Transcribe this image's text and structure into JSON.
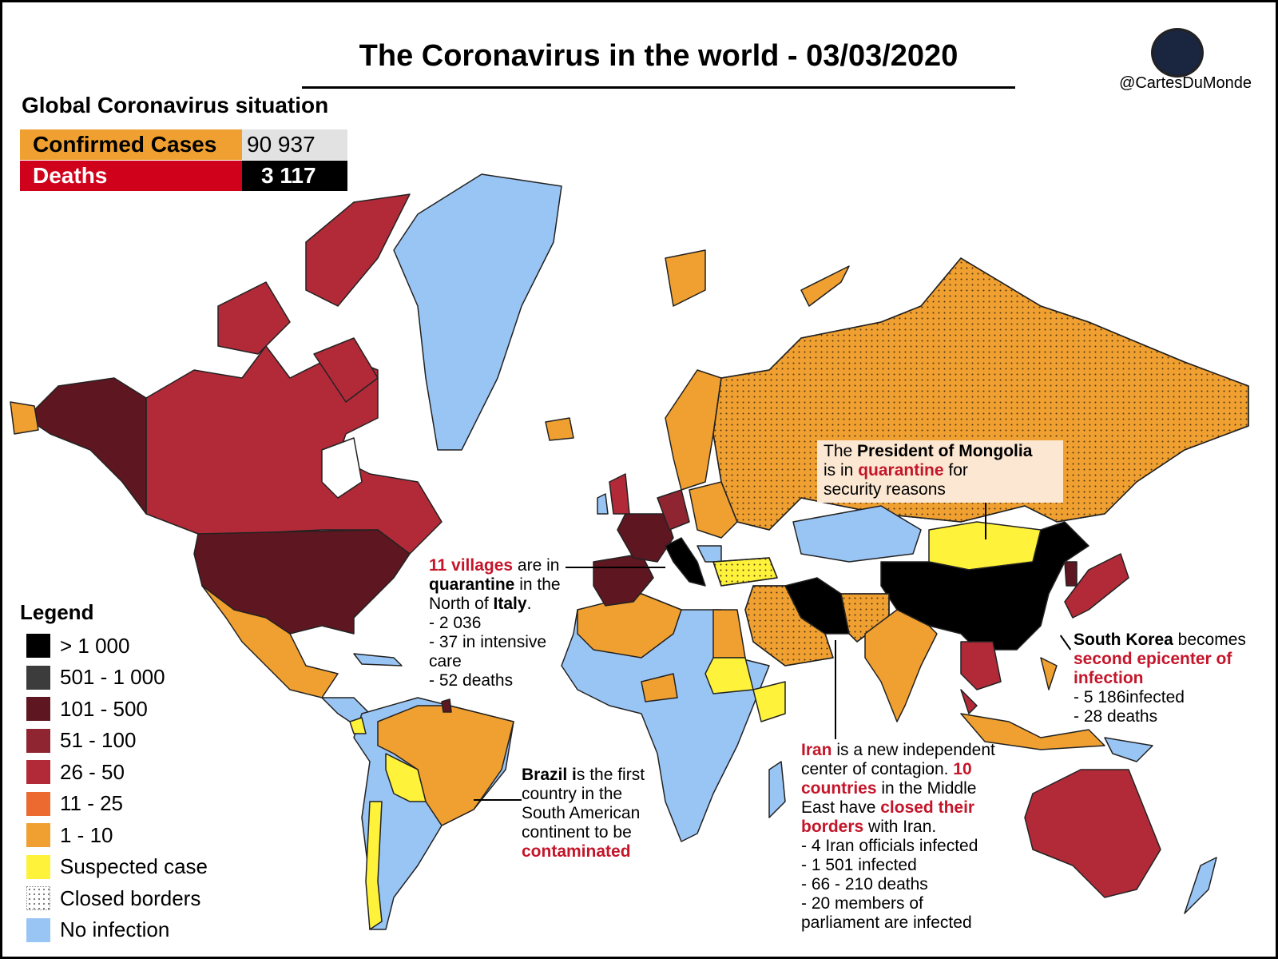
{
  "header": {
    "title": "The Coronavirus in the world - 03/03/2020",
    "credit": "@CartesDuMonde"
  },
  "situation": {
    "title": "Global Coronavirus situation",
    "rows": [
      {
        "label": "Confirmed Cases",
        "value": "90 937"
      },
      {
        "label": "Deaths",
        "value": "3 117"
      }
    ]
  },
  "legend": {
    "title": "Legend",
    "items": [
      {
        "label": "> 1 000",
        "color": "#000000"
      },
      {
        "label": "501 - 1 000",
        "color": "#3c3c3c"
      },
      {
        "label": "101 - 500",
        "color": "#5e1620"
      },
      {
        "label": "51 - 100",
        "color": "#8f2530"
      },
      {
        "label": "26 - 50",
        "color": "#b22a38"
      },
      {
        "label": "11 - 25",
        "color": "#ec6a30"
      },
      {
        "label": "1 - 10",
        "color": "#f0a030"
      },
      {
        "label": "Suspected case",
        "color": "#fff23a"
      },
      {
        "label": "Closed borders",
        "color": "#ffffff",
        "pattern": "dots"
      },
      {
        "label": "No infection",
        "color": "#99c5f5"
      }
    ]
  },
  "annotations": [
    {
      "lines": [
        [
          {
            "text": "The "
          },
          {
            "text": "President of Mongolia",
            "emphasis": "bold"
          }
        ],
        [
          {
            "text": "is in "
          },
          {
            "text": "quarantine",
            "emphasis": "red"
          },
          {
            "text": " for"
          }
        ],
        [
          {
            "text": "security reasons"
          }
        ]
      ]
    },
    {
      "lines": [
        [
          {
            "text": "11 villages",
            "emphasis": "red"
          },
          {
            "text": " are in"
          }
        ],
        [
          {
            "text": "quarantine",
            "emphasis": "bold"
          },
          {
            "text": " in the"
          }
        ],
        [
          {
            "text": "North of "
          },
          {
            "text": "Italy",
            "emphasis": "bold"
          },
          {
            "text": "."
          }
        ],
        [
          {
            "text": "- 2 036"
          }
        ],
        [
          {
            "text": "- 37 in intensive"
          }
        ],
        [
          {
            "text": "care"
          }
        ],
        [
          {
            "text": "- 52 deaths"
          }
        ]
      ]
    },
    {
      "lines": [
        [
          {
            "text": "Brazil i",
            "emphasis": "bold"
          },
          {
            "text": "s the first"
          }
        ],
        [
          {
            "text": "country in the"
          }
        ],
        [
          {
            "text": "South American"
          }
        ],
        [
          {
            "text": "continent to be"
          }
        ],
        [
          {
            "text": "contaminated",
            "emphasis": "red"
          }
        ]
      ]
    },
    {
      "lines": [
        [
          {
            "text": "Iran",
            "emphasis": "red"
          },
          {
            "text": " is a new independent"
          }
        ],
        [
          {
            "text": "center of contagion. "
          },
          {
            "text": "10",
            "emphasis": "red"
          }
        ],
        [
          {
            "text": "countries",
            "emphasis": "red"
          },
          {
            "text": " in the Middle"
          }
        ],
        [
          {
            "text": "East have "
          },
          {
            "text": "closed their",
            "emphasis": "red"
          }
        ],
        [
          {
            "text": "borders",
            "emphasis": "red"
          },
          {
            "text": " with Iran."
          }
        ],
        [
          {
            "text": "- 4 Iran officials infected"
          }
        ],
        [
          {
            "text": "- 1 501 infected"
          }
        ],
        [
          {
            "text": "- 66 - 210 deaths"
          }
        ],
        [
          {
            "text": "- 20 members of"
          }
        ],
        [
          {
            "text": "parliament are infected"
          }
        ]
      ]
    },
    {
      "lines": [
        [
          {
            "text": "South Korea",
            "emphasis": "bold"
          },
          {
            "text": " becomes"
          }
        ],
        [
          {
            "text": "second epicenter of",
            "emphasis": "red"
          }
        ],
        [
          {
            "text": "infection",
            "emphasis": "red"
          }
        ],
        [
          {
            "text": "- 5 186infected"
          }
        ],
        [
          {
            "text": "- 28 deaths"
          }
        ]
      ]
    }
  ]
}
